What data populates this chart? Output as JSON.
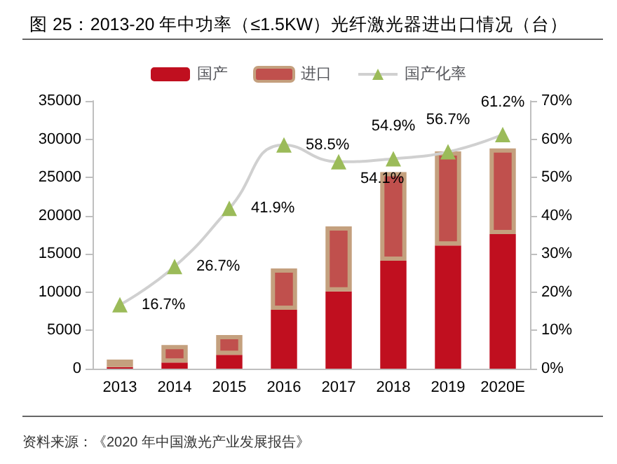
{
  "chart_data": {
    "type": "bar",
    "title": "图 25：2013-20 年中功率（≤1.5KW）光纤激光器进出口情况（台）",
    "categories": [
      "2013",
      "2014",
      "2015",
      "2016",
      "2017",
      "2018",
      "2019",
      "2020E"
    ],
    "stacked": true,
    "series": [
      {
        "name": "国产",
        "color": "#c00f1f",
        "values": [
          200,
          800,
          1800,
          7700,
          10100,
          14100,
          16100,
          17600
        ]
      },
      {
        "name": "进口",
        "color": "#c0504d",
        "values": [
          1000,
          2300,
          2600,
          5400,
          8500,
          11600,
          12300,
          11200
        ]
      },
      {
        "name": "国产化率",
        "type": "line",
        "axis": "y2",
        "color": "#9bbb59",
        "marker": "triangle",
        "values": [
          16.7,
          26.7,
          41.9,
          58.5,
          54.1,
          54.9,
          56.7,
          61.2
        ],
        "value_labels": [
          "16.7%",
          "26.7%",
          "41.9%",
          "58.5%",
          "54.1%",
          "54.9%",
          "56.7%",
          "61.2%"
        ]
      }
    ],
    "ylim": [
      0,
      35000
    ],
    "yticks": [
      0,
      5000,
      10000,
      15000,
      20000,
      25000,
      30000,
      35000
    ],
    "y2lim": [
      0,
      70
    ],
    "y2ticks": [
      {
        "value": 0,
        "label": "0%"
      },
      {
        "value": 10,
        "label": "10%"
      },
      {
        "value": 20,
        "label": "20%"
      },
      {
        "value": 30,
        "label": "30%"
      },
      {
        "value": 40,
        "label": "40%"
      },
      {
        "value": 50,
        "label": "50%"
      },
      {
        "value": 60,
        "label": "60%"
      },
      {
        "value": 70,
        "label": "70%"
      }
    ],
    "legend": "top",
    "grid": false,
    "annotations": [
      "资料来源：《2020 年中国激光产业发展报告》"
    ]
  }
}
